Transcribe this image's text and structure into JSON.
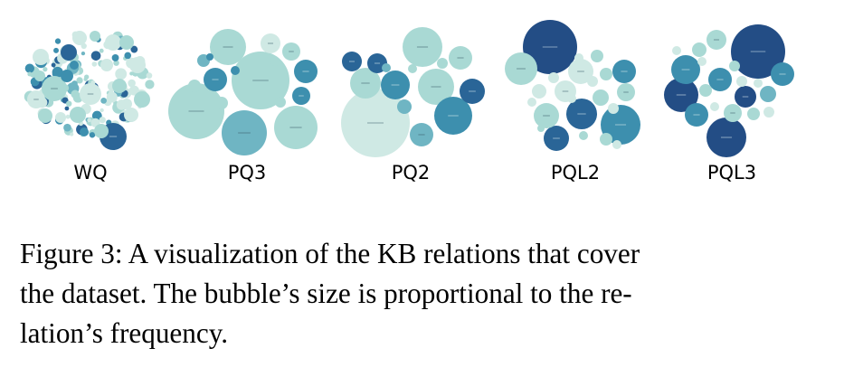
{
  "figure": {
    "number_label": "Figure 3:",
    "caption_lines": [
      "A visualization of the KB relations that cover",
      "the dataset. The bubble’s size is proportional to the re-",
      "lation’s frequency."
    ],
    "panels": [
      {
        "name": "WQ"
      },
      {
        "name": "PQ3"
      },
      {
        "name": "PQ2"
      },
      {
        "name": "PQL2"
      },
      {
        "name": "PQL3"
      }
    ],
    "palette": {
      "pale": "#cfe9e4",
      "light": "#a9d9d4",
      "mid": "#6fb5c3",
      "teal": "#3d8fae",
      "dark": "#2a6597",
      "navy": "#234d85"
    }
  }
}
